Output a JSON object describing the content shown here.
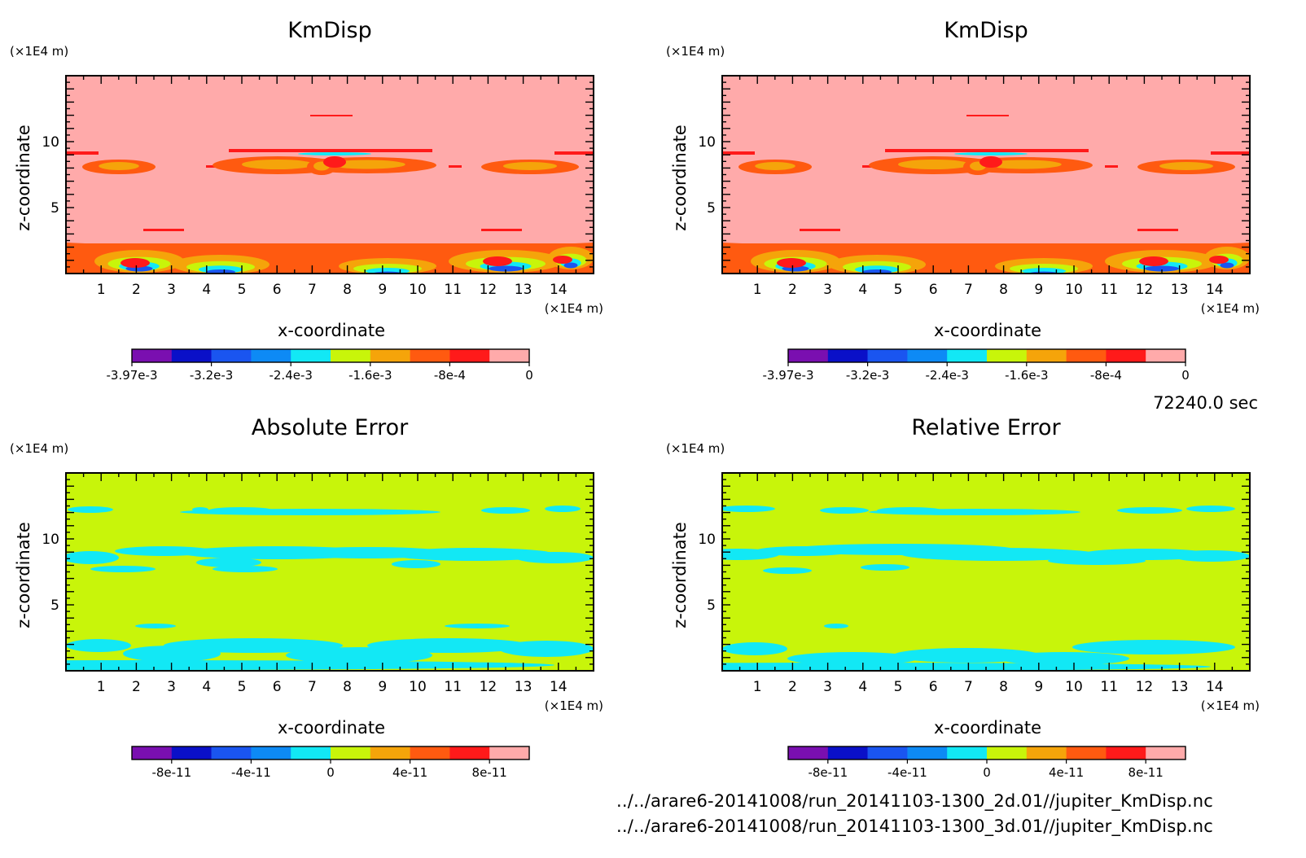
{
  "figure": {
    "time_label": "72240.0 sec",
    "files": [
      "../../arare6-20141008/run_20141103-1300_2d.01//jupiter_KmDisp.nc",
      "../../arare6-20141008/run_20141103-1300_3d.01//jupiter_KmDisp.nc"
    ]
  },
  "chart_data": [
    {
      "type": "heatmap",
      "title": "KmDisp",
      "xlabel": "x-coordinate",
      "ylabel": "z-coordinate",
      "x_unit": "(×1E4 m)",
      "z_unit": "(×1E4 m)",
      "xlim": [
        0,
        15
      ],
      "ylim": [
        0,
        15
      ],
      "xticks": [
        "1",
        "2",
        "3",
        "4",
        "5",
        "6",
        "7",
        "8",
        "9",
        "10",
        "11",
        "12",
        "13",
        "14"
      ],
      "yticks": [
        "5",
        "10"
      ],
      "background_value": 0,
      "colorbar": {
        "colors": [
          "#7a0fb0",
          "#0a10c8",
          "#1a55f0",
          "#0d8af5",
          "#12e8f5",
          "#c8f50a",
          "#f5a40a",
          "#ff5a10",
          "#ff1a1a",
          "#ffaaaa"
        ],
        "tick_labels": [
          "-3.97e-3",
          "-3.2e-3",
          "-2.4e-3",
          "-1.6e-3",
          "-8e-4",
          "0"
        ]
      }
    },
    {
      "type": "heatmap",
      "title": "KmDisp",
      "xlabel": "x-coordinate",
      "ylabel": "z-coordinate",
      "x_unit": "(×1E4 m)",
      "z_unit": "(×1E4 m)",
      "xlim": [
        0,
        15
      ],
      "ylim": [
        0,
        15
      ],
      "xticks": [
        "1",
        "2",
        "3",
        "4",
        "5",
        "6",
        "7",
        "8",
        "9",
        "10",
        "11",
        "12",
        "13",
        "14"
      ],
      "yticks": [
        "5",
        "10"
      ],
      "background_value": 0,
      "colorbar": {
        "colors": [
          "#7a0fb0",
          "#0a10c8",
          "#1a55f0",
          "#0d8af5",
          "#12e8f5",
          "#c8f50a",
          "#f5a40a",
          "#ff5a10",
          "#ff1a1a",
          "#ffaaaa"
        ],
        "tick_labels": [
          "-3.97e-3",
          "-3.2e-3",
          "-2.4e-3",
          "-1.6e-3",
          "-8e-4",
          "0"
        ]
      }
    },
    {
      "type": "heatmap",
      "title": "Absolute Error",
      "xlabel": "x-coordinate",
      "ylabel": "z-coordinate",
      "x_unit": "(×1E4 m)",
      "z_unit": "(×1E4 m)",
      "xlim": [
        0,
        15
      ],
      "ylim": [
        0,
        15
      ],
      "xticks": [
        "1",
        "2",
        "3",
        "4",
        "5",
        "6",
        "7",
        "8",
        "9",
        "10",
        "11",
        "12",
        "13",
        "14"
      ],
      "yticks": [
        "5",
        "10"
      ],
      "background_value": 0,
      "colorbar": {
        "colors": [
          "#7a0fb0",
          "#0a10c8",
          "#1a55f0",
          "#0d8af5",
          "#12e8f5",
          "#c8f50a",
          "#f5a40a",
          "#ff5a10",
          "#ff1a1a",
          "#ffaaaa"
        ],
        "tick_labels": [
          "-8e-11",
          "-4e-11",
          "0",
          "4e-11",
          "8e-11"
        ]
      }
    },
    {
      "type": "heatmap",
      "title": "Relative Error",
      "xlabel": "x-coordinate",
      "ylabel": "z-coordinate",
      "x_unit": "(×1E4 m)",
      "z_unit": "(×1E4 m)",
      "xlim": [
        0,
        15
      ],
      "ylim": [
        0,
        15
      ],
      "xticks": [
        "1",
        "2",
        "3",
        "4",
        "5",
        "6",
        "7",
        "8",
        "9",
        "10",
        "11",
        "12",
        "13",
        "14"
      ],
      "yticks": [
        "5",
        "10"
      ],
      "background_value": 0,
      "colorbar": {
        "colors": [
          "#7a0fb0",
          "#0a10c8",
          "#1a55f0",
          "#0d8af5",
          "#12e8f5",
          "#c8f50a",
          "#f5a40a",
          "#ff5a10",
          "#ff1a1a",
          "#ffaaaa"
        ],
        "tick_labels": [
          "-8e-11",
          "-4e-11",
          "0",
          "4e-11",
          "8e-11"
        ]
      }
    }
  ]
}
